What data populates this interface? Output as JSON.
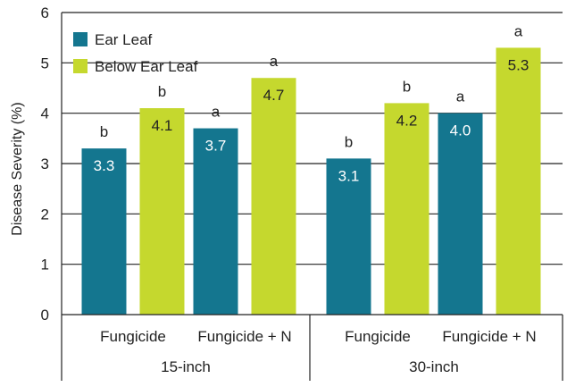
{
  "chart_data": {
    "type": "bar",
    "ylabel": "Disease Severity (%)",
    "ylim": [
      0,
      6
    ],
    "yticks": [
      0,
      1,
      2,
      3,
      4,
      5,
      6
    ],
    "grid": true,
    "legend_position": "top-left",
    "groups": [
      "15-inch",
      "30-inch"
    ],
    "categories": [
      "Fungicide",
      "Fungicide + N",
      "Fungicide",
      "Fungicide + N"
    ],
    "category_group": [
      0,
      0,
      1,
      1
    ],
    "series": [
      {
        "name": "Ear Leaf",
        "color": "#14768f",
        "label_color": "#ffffff",
        "values": [
          3.3,
          3.7,
          3.1,
          4.0
        ],
        "value_labels": [
          "3.3",
          "3.7",
          "3.1",
          "4.0"
        ],
        "significance": [
          "b",
          "a",
          "b",
          "a"
        ]
      },
      {
        "name": "Below Ear Leaf",
        "color": "#c5d82e",
        "label_color": "#222222",
        "values": [
          4.1,
          4.7,
          4.2,
          5.3
        ],
        "value_labels": [
          "4.1",
          "4.7",
          "4.2",
          "5.3"
        ],
        "significance": [
          "b",
          "a",
          "b",
          "a"
        ]
      }
    ]
  }
}
